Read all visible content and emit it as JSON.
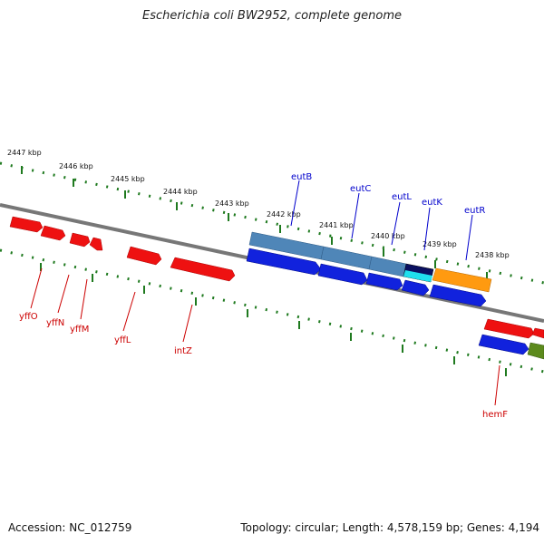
{
  "title": "Escherichia coli BW2952, complete genome",
  "footer": {
    "accession": "Accession: NC_012759",
    "stats": "Topology: circular; Length: 4,578,159 bp; Genes: 4,194"
  },
  "ruler": {
    "labels": [
      "2447 kbp",
      "2446 kbp",
      "2445 kbp",
      "2444 kbp",
      "2443 kbp",
      "2442 kbp",
      "2441 kbp",
      "2440 kbp",
      "2439 kbp",
      "2438 kbp"
    ]
  },
  "genes": {
    "forward": [
      "eutB",
      "eutC",
      "eutL",
      "eutK",
      "eutR"
    ],
    "reverse": [
      "yffO",
      "yffN",
      "yffM",
      "yffL",
      "intZ",
      "hemF"
    ]
  },
  "colors": {
    "backbone": "#777777",
    "tick": "#1f7a1f",
    "forward_label": "#0000cc",
    "reverse_label": "#cc0000",
    "reverse_gene": "#ee1111",
    "forward_gene": "#1122dd",
    "steelblue_gene": "#4f86b8",
    "navy_gene": "#0a1060",
    "cyan_gene": "#20e0ee",
    "orange_gene": "#ff9a10",
    "olive_gene": "#5c8a1c"
  }
}
